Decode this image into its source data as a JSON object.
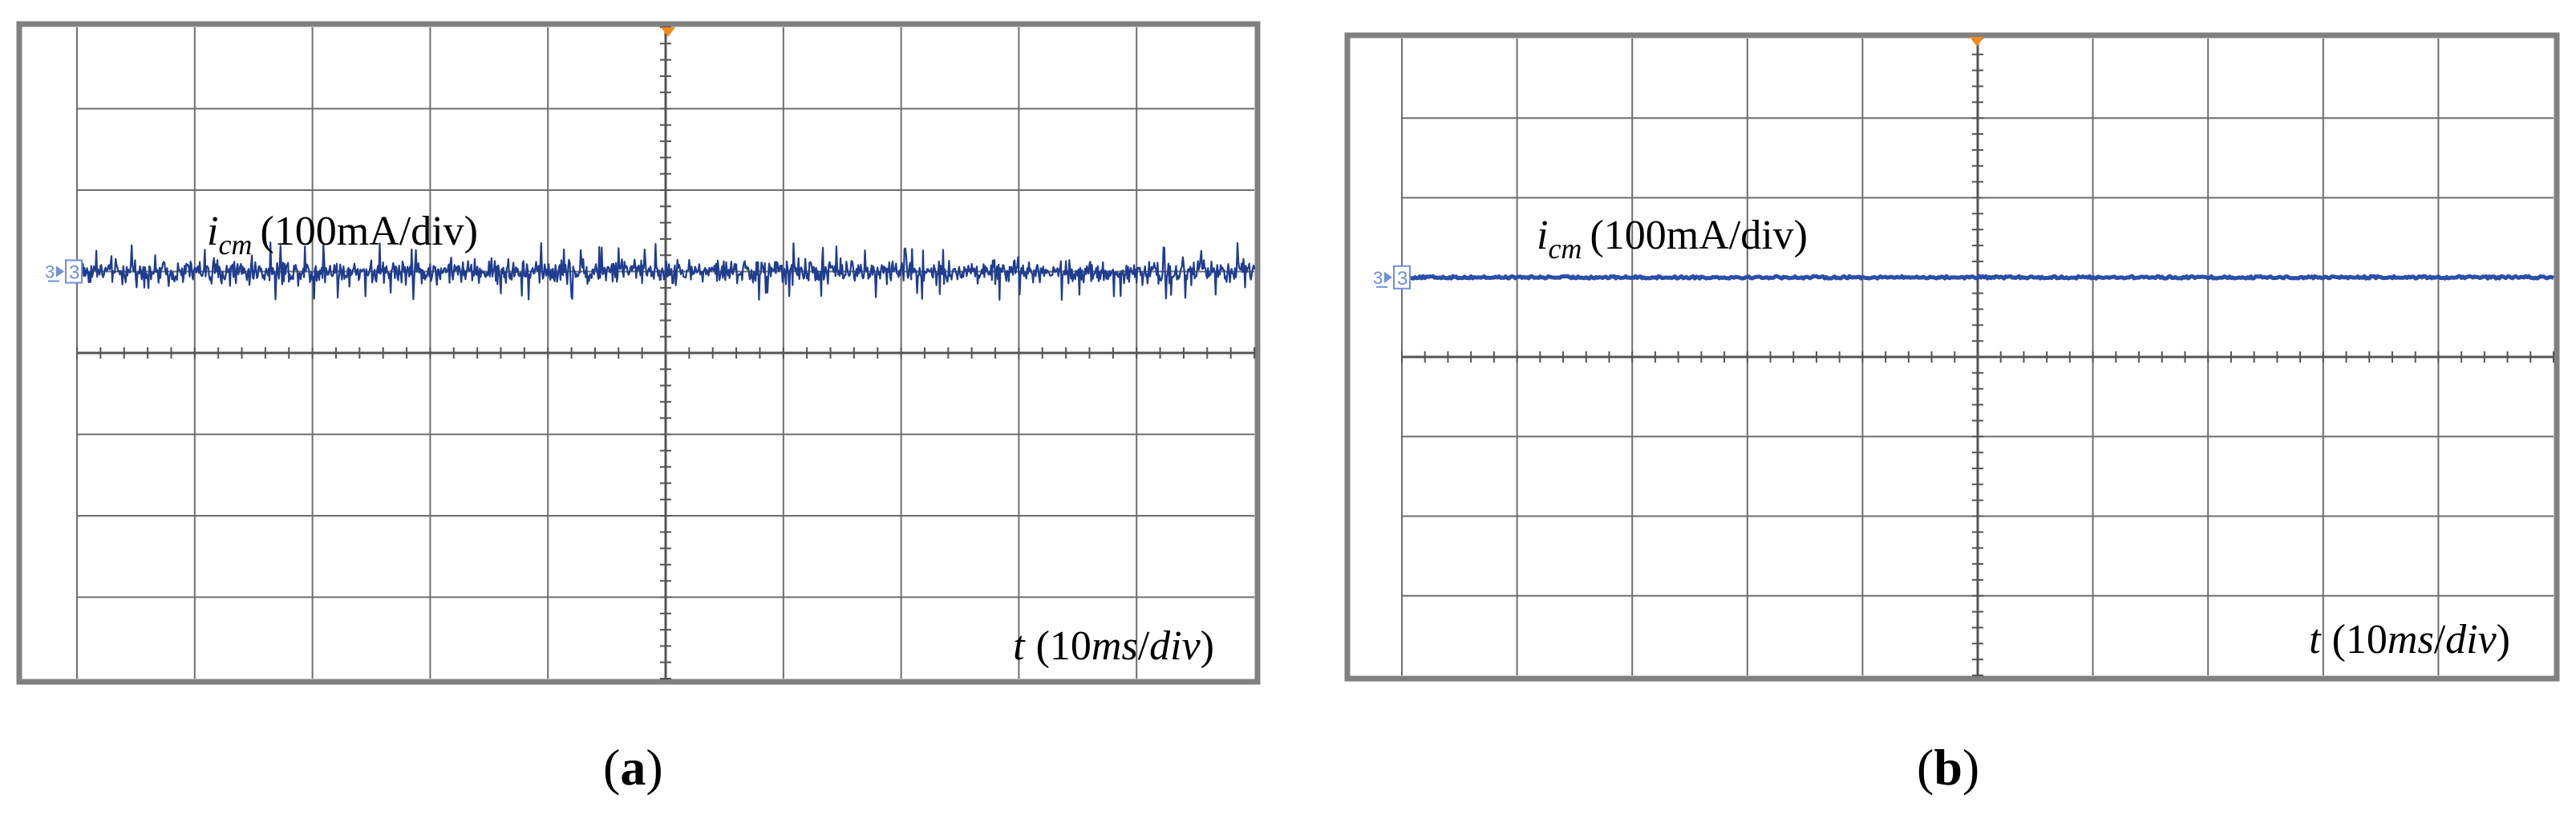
{
  "chart_data": [
    {
      "type": "line",
      "panel_label": "a",
      "channel_marker": "3",
      "signal_label": {
        "symbol": "i",
        "subscript": "cm",
        "scale": "(100mA/div)"
      },
      "time_label": {
        "symbol": "t",
        "open": "(10",
        "unit": "ms",
        "slash": "/",
        "div": "div",
        "close": ")"
      },
      "divisions": {
        "x": 10,
        "y": 8
      },
      "grid": true,
      "series": [
        {
          "signal": "noise",
          "baseline_div": 3.0,
          "amplitude_div": 0.22,
          "peak_div": 0.36,
          "color": "#1f3d8f"
        }
      ]
    },
    {
      "type": "line",
      "panel_label": "b",
      "channel_marker": "3",
      "signal_label": {
        "symbol": "i",
        "subscript": "cm",
        "scale": "(100mA/div)"
      },
      "time_label": {
        "symbol": "t",
        "open": "(10",
        "unit": "ms",
        "slash": "/",
        "div": "div",
        "close": ")"
      },
      "divisions": {
        "x": 10,
        "y": 8
      },
      "grid": true,
      "series": [
        {
          "signal": "flat",
          "baseline_div": 3.0,
          "amplitude_div": 0.015,
          "peak_div": 0.03,
          "color": "#2a4fa8"
        }
      ]
    }
  ],
  "colors": {
    "frame": "#808080",
    "grid": "#6e6e6e",
    "marker_blue": "#6f8fd8",
    "trigger_orange": "#f08c1c"
  }
}
